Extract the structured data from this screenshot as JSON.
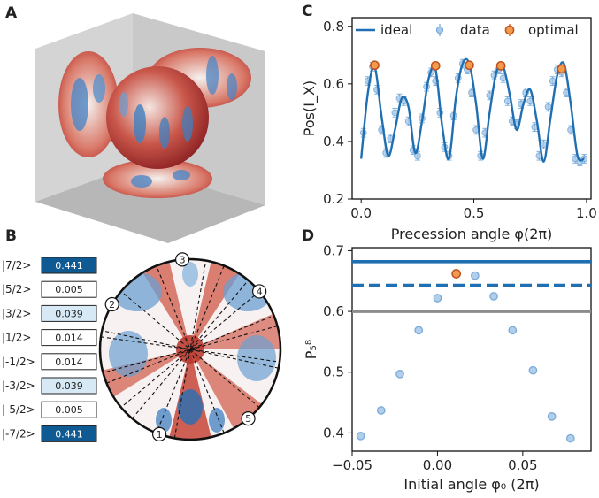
{
  "panels": {
    "a": "A",
    "b": "B",
    "c": "C",
    "d": "D"
  },
  "colors": {
    "line": "#1f6fb2",
    "data_fill": "#a9c9e8",
    "data_edge": "#6aa2d6",
    "optimal_fill": "#f39b4c",
    "optimal_edge": "#c0501c",
    "ref_gray": "#8c8c8c",
    "dark_cell": "#0f5a92",
    "light_cell": "#d6e9f5"
  },
  "panel_b": {
    "states": [
      {
        "ket": "|7/2>",
        "value": "0.441",
        "shade": "dark"
      },
      {
        "ket": "|5/2>",
        "value": "0.005",
        "shade": "white"
      },
      {
        "ket": "|3/2>",
        "value": "0.039",
        "shade": "light"
      },
      {
        "ket": "|1/2>",
        "value": "0.014",
        "shade": "white"
      },
      {
        "ket": "|-1/2>",
        "value": "0.014",
        "shade": "white"
      },
      {
        "ket": "|-3/2>",
        "value": "0.039",
        "shade": "light"
      },
      {
        "ket": "|-5/2>",
        "value": "0.005",
        "shade": "white"
      },
      {
        "ket": "|-7/2>",
        "value": "0.441",
        "shade": "dark"
      }
    ],
    "markers": [
      "1",
      "2",
      "3",
      "4",
      "5"
    ]
  },
  "chart_data": [
    {
      "panel": "C",
      "type": "line",
      "xlabel": "Precession angle φ(2π)",
      "ylabel": "Pos(I_X)",
      "xlim": [
        -0.04,
        1.02
      ],
      "ylim": [
        0.2,
        0.83
      ],
      "xticks": [
        "0.0",
        "0.5",
        "1.0"
      ],
      "yticks": [
        "0.2",
        "0.4",
        "0.6",
        "0.8"
      ],
      "legend": [
        "ideal",
        "data",
        "optimal"
      ],
      "ideal_curve": {
        "x": [
          0.0,
          0.03,
          0.06,
          0.09,
          0.12,
          0.15,
          0.18,
          0.21,
          0.24,
          0.27,
          0.3,
          0.33,
          0.36,
          0.39,
          0.42,
          0.45,
          0.48,
          0.51,
          0.54,
          0.57,
          0.6,
          0.63,
          0.66,
          0.69,
          0.72,
          0.75,
          0.78,
          0.81,
          0.84,
          0.87,
          0.9,
          0.93,
          0.96,
          0.99
        ],
        "y": [
          0.34,
          0.57,
          0.66,
          0.49,
          0.35,
          0.44,
          0.55,
          0.52,
          0.36,
          0.47,
          0.62,
          0.65,
          0.45,
          0.34,
          0.55,
          0.67,
          0.67,
          0.53,
          0.34,
          0.5,
          0.64,
          0.66,
          0.56,
          0.44,
          0.53,
          0.58,
          0.47,
          0.33,
          0.48,
          0.63,
          0.67,
          0.53,
          0.35,
          0.34
        ]
      },
      "data_points": {
        "x": [
          0.01,
          0.03,
          0.05,
          0.07,
          0.09,
          0.11,
          0.13,
          0.15,
          0.17,
          0.19,
          0.21,
          0.23,
          0.25,
          0.27,
          0.29,
          0.31,
          0.33,
          0.35,
          0.37,
          0.39,
          0.41,
          0.43,
          0.45,
          0.47,
          0.49,
          0.51,
          0.53,
          0.55,
          0.57,
          0.59,
          0.61,
          0.63,
          0.65,
          0.67,
          0.69,
          0.71,
          0.73,
          0.75,
          0.77,
          0.79,
          0.81,
          0.83,
          0.85,
          0.87,
          0.89,
          0.91,
          0.93,
          0.95,
          0.97,
          0.99
        ],
        "y": [
          0.43,
          0.61,
          0.66,
          0.58,
          0.44,
          0.36,
          0.41,
          0.5,
          0.55,
          0.54,
          0.47,
          0.37,
          0.35,
          0.48,
          0.59,
          0.64,
          0.61,
          0.5,
          0.38,
          0.35,
          0.49,
          0.62,
          0.67,
          0.65,
          0.57,
          0.44,
          0.35,
          0.43,
          0.56,
          0.63,
          0.65,
          0.62,
          0.54,
          0.47,
          0.46,
          0.53,
          0.57,
          0.54,
          0.45,
          0.35,
          0.39,
          0.52,
          0.61,
          0.65,
          0.64,
          0.57,
          0.44,
          0.34,
          0.33,
          0.34
        ],
        "yerr": 0.015
      },
      "optimal": {
        "x": [
          0.06,
          0.33,
          0.48,
          0.62,
          0.89
        ],
        "y": [
          0.665,
          0.663,
          0.665,
          0.663,
          0.652
        ]
      }
    },
    {
      "panel": "D",
      "type": "scatter",
      "xlabel": "Initial angle φ₀ (2π)",
      "ylabel": "P₅⁸",
      "xlim": [
        -0.05,
        0.09
      ],
      "ylim": [
        0.37,
        0.705
      ],
      "xticks": [
        "−0.05",
        "0.00",
        "0.05"
      ],
      "yticks": [
        "0.4",
        "0.5",
        "0.6",
        "0.7"
      ],
      "points": {
        "x": [
          -0.045,
          -0.033,
          -0.022,
          -0.011,
          0.0,
          0.022,
          0.033,
          0.044,
          0.056,
          0.067,
          0.078
        ],
        "y": [
          0.395,
          0.437,
          0.497,
          0.569,
          0.622,
          0.659,
          0.625,
          0.569,
          0.503,
          0.427,
          0.391
        ]
      },
      "optimal": {
        "x": [
          0.011
        ],
        "y": [
          0.662
        ]
      },
      "hlines": [
        {
          "y": 0.682,
          "style": "solid",
          "color": "#1f6fb2"
        },
        {
          "y": 0.643,
          "style": "dashed",
          "color": "#1f6fb2"
        },
        {
          "y": 0.6,
          "style": "solid",
          "color": "#8c8c8c"
        }
      ]
    }
  ]
}
